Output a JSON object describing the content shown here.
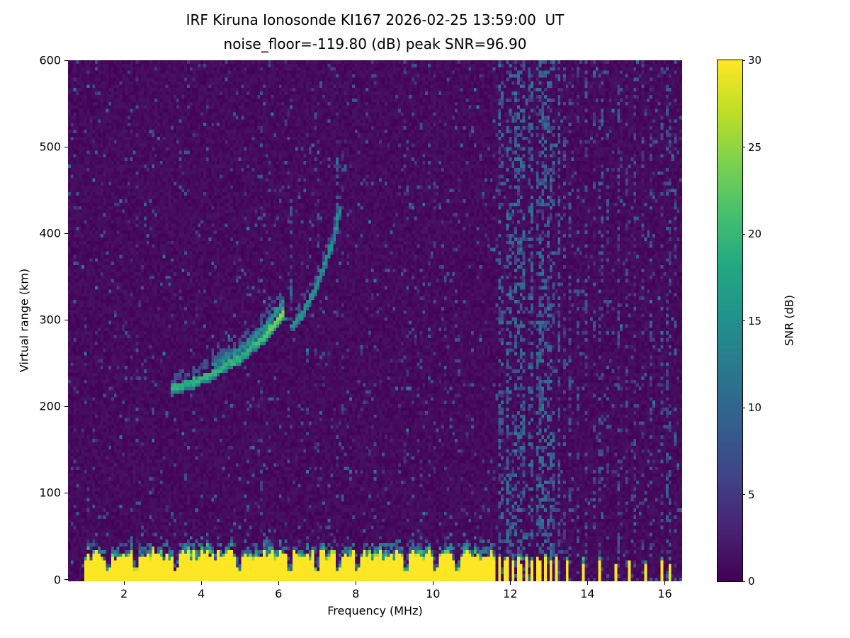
{
  "chart_data": {
    "type": "heatmap",
    "title": "IRF Kiruna Ionosonde KI167 2026-02-25 13:59:00  UT",
    "subtitle": "noise_floor=-119.80 (dB) peak SNR=96.90",
    "station": "IRF Kiruna Ionosonde KI167",
    "timestamp_ut": "2026-02-25 13:59:00",
    "noise_floor_db": -119.8,
    "peak_snr_db": 96.9,
    "xlabel": "Frequency (MHz)",
    "ylabel": "Virtual range (km)",
    "xlim": [
      0.55,
      16.45
    ],
    "ylim": [
      -2,
      600
    ],
    "x_ticks": [
      2,
      4,
      6,
      8,
      10,
      12,
      14,
      16
    ],
    "y_ticks": [
      0,
      100,
      200,
      300,
      400,
      500,
      600
    ],
    "colorbar": {
      "label": "SNR (dB)",
      "range": [
        0,
        30
      ],
      "ticks": [
        0,
        5,
        10,
        15,
        20,
        25,
        30
      ],
      "colormap": "viridis",
      "stops": [
        [
          0,
          "#440154"
        ],
        [
          0.1,
          "#482475"
        ],
        [
          0.2,
          "#414487"
        ],
        [
          0.3,
          "#355f8d"
        ],
        [
          0.4,
          "#2a788e"
        ],
        [
          0.5,
          "#21918c"
        ],
        [
          0.6,
          "#22a884"
        ],
        [
          0.7,
          "#44bf70"
        ],
        [
          0.8,
          "#7ad151"
        ],
        [
          0.9,
          "#bddf26"
        ],
        [
          1,
          "#fde725"
        ]
      ]
    },
    "ground_clutter_band": {
      "f_start": 0.95,
      "f_end": 11.62,
      "top_km": 32,
      "fuzz_km": 10,
      "notch_freqs": [
        1.6,
        2.3,
        3.35,
        4.95,
        6.3,
        7.0,
        7.55,
        8.05,
        9.3,
        10.05,
        10.65
      ]
    },
    "echo_traces": [
      {
        "name": "F-region trace lower branch",
        "points": [
          [
            3.25,
            220
          ],
          [
            3.5,
            224
          ],
          [
            3.8,
            228
          ],
          [
            4.1,
            234
          ],
          [
            4.4,
            241
          ],
          [
            4.7,
            249
          ],
          [
            5.0,
            257
          ],
          [
            5.3,
            267
          ],
          [
            5.6,
            279
          ],
          [
            5.85,
            293
          ],
          [
            6.05,
            303
          ],
          [
            6.15,
            310
          ]
        ]
      },
      {
        "name": "F-region trace upper branch",
        "points": [
          [
            4.3,
            248
          ],
          [
            4.7,
            258
          ],
          [
            5.0,
            266
          ],
          [
            5.3,
            277
          ],
          [
            5.6,
            290
          ],
          [
            5.8,
            300
          ],
          [
            5.95,
            310
          ],
          [
            6.1,
            320
          ]
        ]
      },
      {
        "name": "second mode trace",
        "points": [
          [
            6.35,
            292
          ],
          [
            6.5,
            300
          ],
          [
            6.65,
            310
          ],
          [
            6.8,
            322
          ],
          [
            6.95,
            336
          ],
          [
            7.1,
            352
          ],
          [
            7.25,
            370
          ],
          [
            7.4,
            390
          ],
          [
            7.5,
            408
          ],
          [
            7.58,
            428
          ]
        ]
      }
    ],
    "echo_diffuse": [
      {
        "f": 6.3,
        "r0": 305,
        "r1": 435,
        "p": 0.22,
        "v": 10
      },
      {
        "f": 7.0,
        "r0": 340,
        "r1": 465,
        "p": 0.18,
        "v": 9
      },
      {
        "f": 7.5,
        "r0": 400,
        "r1": 492,
        "p": 0.28,
        "v": 11
      }
    ],
    "rfi_stripes": [
      {
        "f": 6.3,
        "p": 0.1,
        "v": 8
      },
      {
        "f": 7.0,
        "p": 0.08,
        "v": 8
      },
      {
        "f": 7.5,
        "p": 0.1,
        "v": 8
      },
      {
        "f": 9.3,
        "p": 0.07,
        "v": 8
      },
      {
        "f": 10.05,
        "p": 0.07,
        "v": 8
      },
      {
        "f": 10.65,
        "p": 0.08,
        "v": 8
      },
      {
        "f": 11.7,
        "p": 0.42,
        "v": 13
      },
      {
        "f": 11.81,
        "p": 0.3,
        "v": 12
      },
      {
        "f": 11.92,
        "p": 0.45,
        "v": 13
      },
      {
        "f": 12.03,
        "p": 0.3,
        "v": 12
      },
      {
        "f": 12.14,
        "p": 0.42,
        "v": 13
      },
      {
        "f": 12.25,
        "p": 0.3,
        "v": 12
      },
      {
        "f": 12.36,
        "p": 0.45,
        "v": 13
      },
      {
        "f": 12.47,
        "p": 0.3,
        "v": 12
      },
      {
        "f": 12.58,
        "p": 0.42,
        "v": 13
      },
      {
        "f": 12.69,
        "p": 0.3,
        "v": 12
      },
      {
        "f": 12.8,
        "p": 0.45,
        "v": 13
      },
      {
        "f": 12.91,
        "p": 0.3,
        "v": 12
      },
      {
        "f": 13.02,
        "p": 0.42,
        "v": 13
      },
      {
        "f": 13.13,
        "p": 0.3,
        "v": 12
      },
      {
        "f": 13.24,
        "p": 0.38,
        "v": 12
      },
      {
        "f": 13.4,
        "p": 0.22,
        "v": 10
      },
      {
        "f": 13.55,
        "p": 0.25,
        "v": 10
      },
      {
        "f": 13.75,
        "p": 0.2,
        "v": 10
      },
      {
        "f": 13.95,
        "p": 0.25,
        "v": 10
      },
      {
        "f": 14.15,
        "p": 0.2,
        "v": 10
      },
      {
        "f": 14.35,
        "p": 0.26,
        "v": 11
      },
      {
        "f": 14.55,
        "p": 0.2,
        "v": 10
      },
      {
        "f": 14.8,
        "p": 0.25,
        "v": 10
      },
      {
        "f": 15.0,
        "p": 0.2,
        "v": 10
      },
      {
        "f": 15.2,
        "p": 0.24,
        "v": 10
      },
      {
        "f": 15.45,
        "p": 0.2,
        "v": 10
      },
      {
        "f": 15.65,
        "p": 0.25,
        "v": 10
      },
      {
        "f": 15.9,
        "p": 0.22,
        "v": 10
      },
      {
        "f": 16.1,
        "p": 0.26,
        "v": 11
      },
      {
        "f": 16.3,
        "p": 0.2,
        "v": 10
      }
    ],
    "rfi_yellow_columns": [
      {
        "f": 11.72,
        "h": 26
      },
      {
        "f": 11.84,
        "h": 21
      },
      {
        "f": 11.95,
        "h": 25
      },
      {
        "f": 12.06,
        "h": 22
      },
      {
        "f": 12.18,
        "h": 26
      },
      {
        "f": 12.3,
        "h": 20
      },
      {
        "f": 12.42,
        "h": 25
      },
      {
        "f": 12.55,
        "h": 22
      },
      {
        "f": 12.67,
        "h": 26
      },
      {
        "f": 12.8,
        "h": 21
      },
      {
        "f": 12.92,
        "h": 25
      },
      {
        "f": 13.04,
        "h": 22
      },
      {
        "f": 13.16,
        "h": 26
      },
      {
        "f": 13.5,
        "h": 22
      },
      {
        "f": 13.9,
        "h": 20
      },
      {
        "f": 14.3,
        "h": 24
      },
      {
        "f": 14.75,
        "h": 19
      },
      {
        "f": 15.1,
        "h": 22
      },
      {
        "f": 15.5,
        "h": 18
      },
      {
        "f": 15.9,
        "h": 22
      },
      {
        "f": 16.1,
        "h": 20
      }
    ]
  }
}
